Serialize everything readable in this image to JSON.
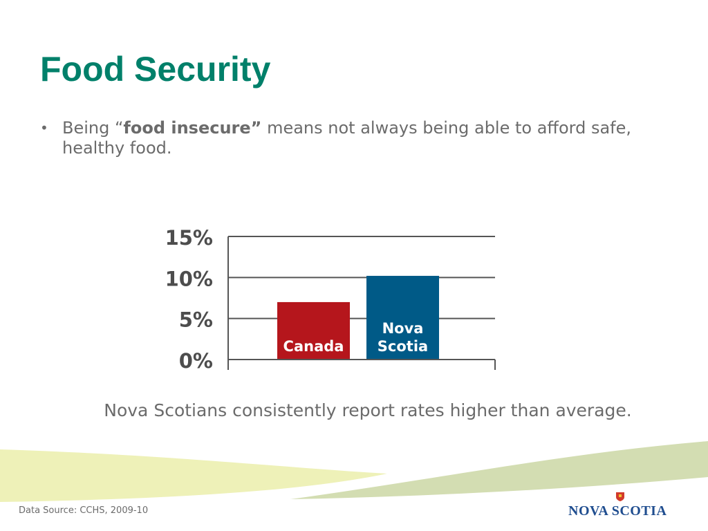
{
  "slide": {
    "title": "Food Security",
    "bullet": {
      "marker": "•",
      "prefix": "Being “",
      "bold": "food insecure”",
      "suffix": " means not always being able to afford safe, healthy food."
    },
    "caption": "Nova Scotians consistently report rates higher than average.",
    "source": "Data Source: CCHS, 2009-10",
    "logo_text": "NOVA SCOTIA"
  },
  "colors": {
    "title": "#00806a",
    "text": "#6b6b6b",
    "canada_bar": "#b5161c",
    "nova_scotia_bar": "#005a87",
    "gridline": "#555555",
    "wave_light": "#eef1b8",
    "wave_sage": "#d3ddb2",
    "logo": "#1f4d8f"
  },
  "chart_data": {
    "type": "bar",
    "categories": [
      "Canada",
      "Nova Scotia"
    ],
    "bar_labels": [
      [
        "Canada"
      ],
      [
        "Nova",
        "Scotia"
      ]
    ],
    "values": [
      7,
      10.2
    ],
    "ylim": [
      0,
      15
    ],
    "yticks": [
      0,
      5,
      10,
      15
    ],
    "ytick_labels": [
      "0%",
      "5%",
      "10%",
      "15%"
    ],
    "grid": true,
    "legend": "none",
    "title": "",
    "xlabel": "",
    "ylabel": ""
  }
}
